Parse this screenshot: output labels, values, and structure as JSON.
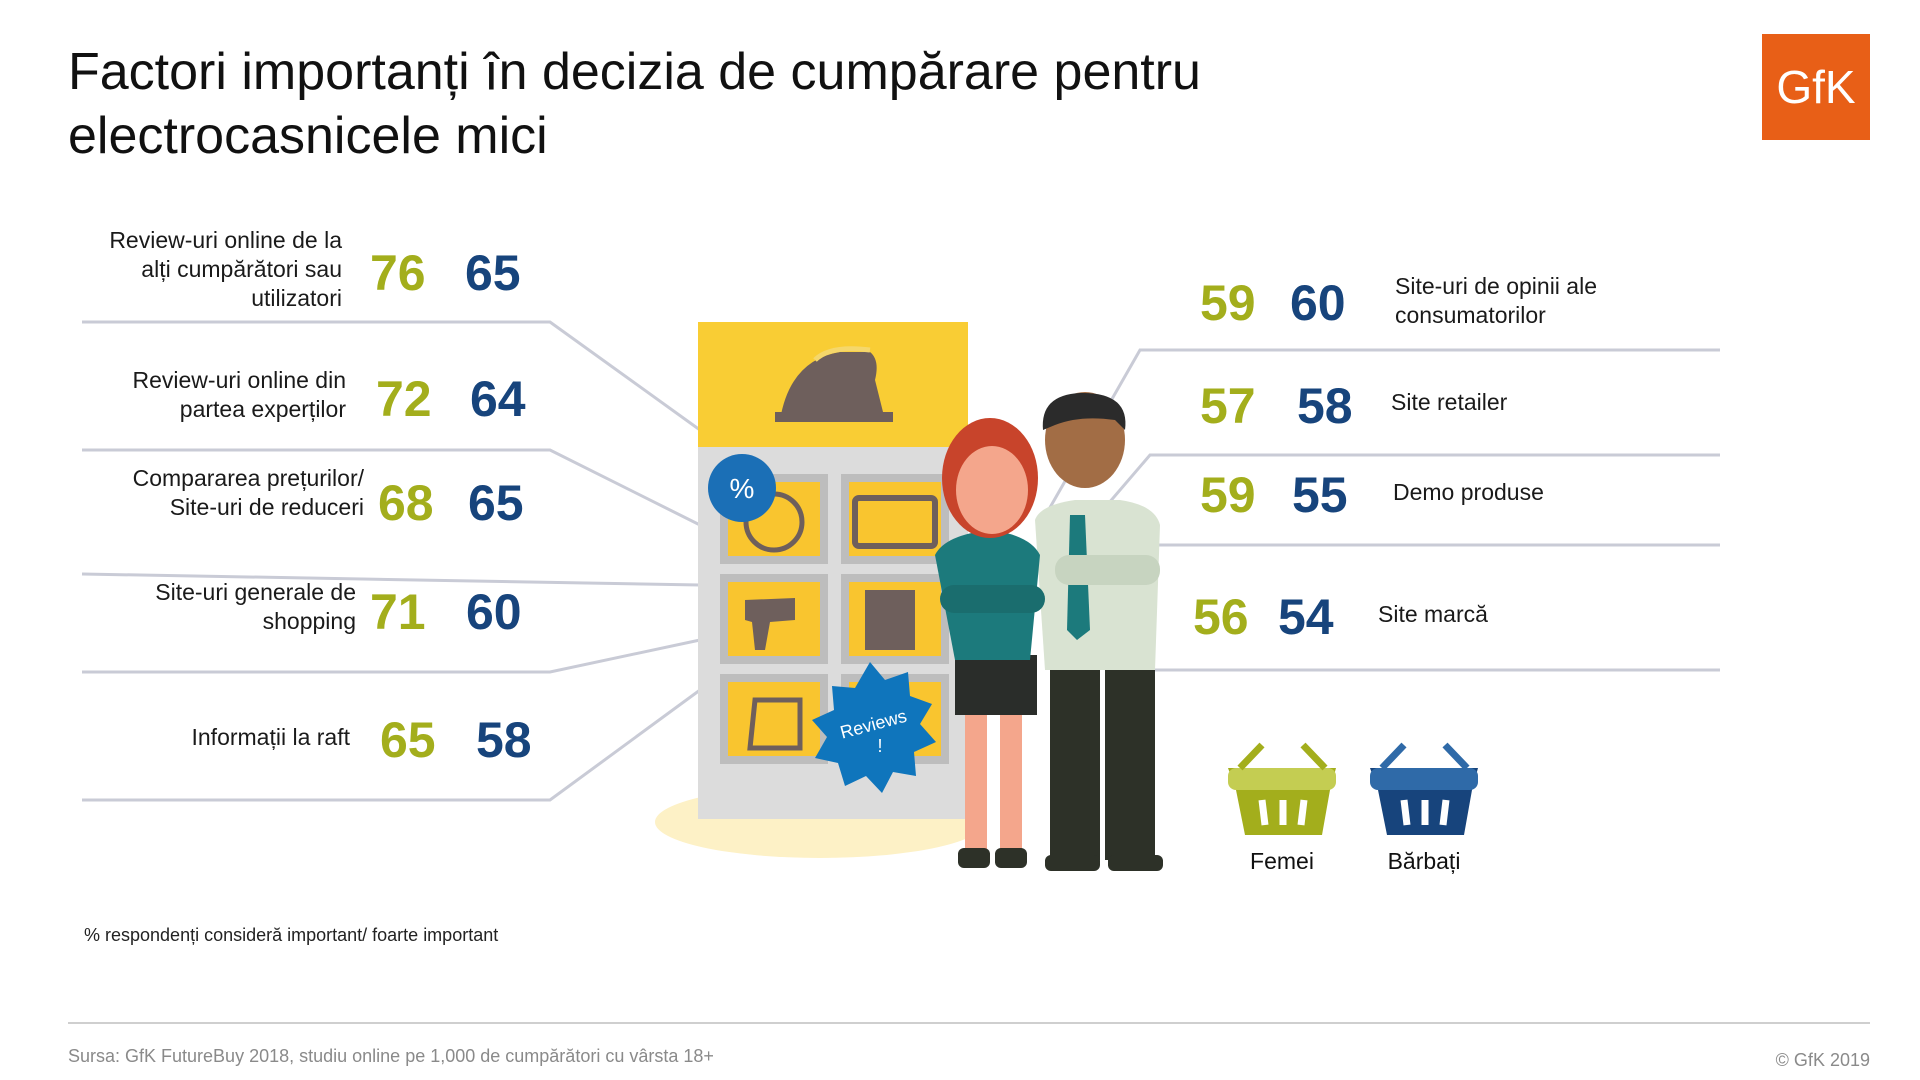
{
  "title": "Factori importanți în decizia de cumpărare pentru electrocasnicele mici",
  "logo_text": "GfK",
  "colors": {
    "women": "#a3ae1c",
    "men": "#17447c",
    "brand": "#e85f17"
  },
  "chart_data": {
    "type": "table",
    "series": [
      {
        "name": "Femei",
        "values": [
          76,
          72,
          68,
          71,
          65,
          59,
          57,
          59,
          56
        ]
      },
      {
        "name": "Bărbați",
        "values": [
          65,
          64,
          65,
          60,
          58,
          60,
          58,
          55,
          54
        ]
      }
    ],
    "categories": [
      "Review-uri online de la alți cumpărători sau utilizatori",
      "Review-uri online din partea experților",
      "Compararea prețurilor/ Site-uri de reduceri",
      "Site-uri generale de shopping",
      "Informații la raft",
      "Site-uri de opinii ale consumatorilor",
      "Site retailer",
      "Demo produse",
      "Site marcă"
    ],
    "left_rows": [
      {
        "label_lines": [
          "Review-uri online de la",
          "alți cumpărători sau",
          "utilizatori"
        ],
        "women": "76",
        "men": "65"
      },
      {
        "label_lines": [
          "Review-uri online din",
          "partea experților"
        ],
        "women": "72",
        "men": "64"
      },
      {
        "label_lines": [
          "Compararea prețurilor/",
          "Site-uri de reduceri"
        ],
        "women": "68",
        "men": "65"
      },
      {
        "label_lines": [
          "Site-uri generale de",
          "shopping"
        ],
        "women": "71",
        "men": "60"
      },
      {
        "label_lines": [
          "Informații la raft"
        ],
        "women": "65",
        "men": "58"
      }
    ],
    "right_rows": [
      {
        "label_lines": [
          "Site-uri de opinii ale",
          "consumatorilor"
        ],
        "women": "59",
        "men": "60"
      },
      {
        "label_lines": [
          "Site retailer"
        ],
        "women": "57",
        "men": "58"
      },
      {
        "label_lines": [
          "Demo produse"
        ],
        "women": "59",
        "men": "55"
      },
      {
        "label_lines": [
          "Site marcă"
        ],
        "women": "56",
        "men": "54"
      }
    ],
    "legend": {
      "women": "Femei",
      "men": "Bărbați"
    }
  },
  "badges": {
    "percent": "%",
    "reviews_line1": "Reviews",
    "reviews_line2": "!"
  },
  "note": "% respondenți consideră important/ foarte important",
  "source": "Sursa: GfK FutureBuy 2018, studiu online pe 1,000 de cumpărători cu vârsta 18+",
  "copyright": "© GfK 2019"
}
